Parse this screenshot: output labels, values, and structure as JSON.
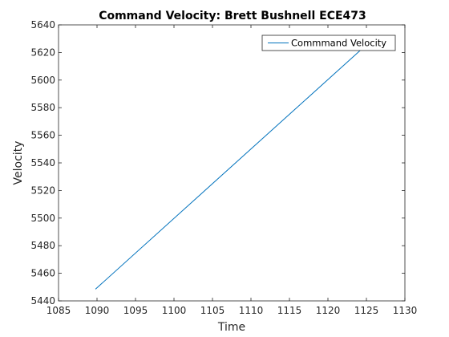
{
  "chart_data": {
    "type": "line",
    "title": "Command Velocity: Brett Bushnell ECE473",
    "xlabel": "Time",
    "ylabel": "Velocity",
    "xlim": [
      1085,
      1130
    ],
    "ylim": [
      5440,
      5640
    ],
    "xticks": [
      1085,
      1090,
      1095,
      1100,
      1105,
      1110,
      1115,
      1120,
      1125,
      1130
    ],
    "yticks": [
      5440,
      5460,
      5480,
      5500,
      5520,
      5540,
      5560,
      5580,
      5600,
      5620,
      5640
    ],
    "grid": false,
    "legend_position": "top-right",
    "series": [
      {
        "name": "Commmand Velocity",
        "color": "#0072BD",
        "x": [
          1089.8,
          1124.9
        ],
        "y": [
          5448.5,
          5625
        ]
      }
    ]
  }
}
